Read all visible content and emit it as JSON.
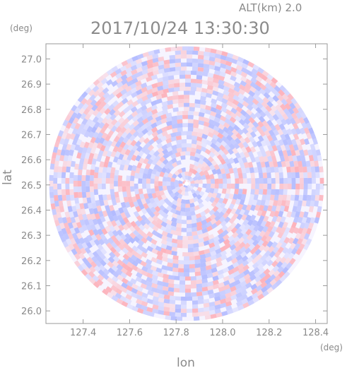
{
  "header": {
    "altitude_label": "ALT(km) 2.0",
    "timestamp": "2017/10/24 13:30:30"
  },
  "chart_data": {
    "type": "heatmap",
    "title": "2017/10/24 13:30:30",
    "subtitle": "ALT(km) 2.0",
    "xlabel": "lon",
    "ylabel": "lat",
    "x_unit": "(deg)",
    "y_unit": "(deg)",
    "xlim": [
      127.24,
      128.45
    ],
    "ylim": [
      25.95,
      27.06
    ],
    "x_ticks": [
      "127.4",
      "127.6",
      "127.8",
      "128.0",
      "128.2",
      "128.4"
    ],
    "y_ticks": [
      "26.0",
      "26.1",
      "26.2",
      "26.3",
      "26.4",
      "26.5",
      "26.6",
      "26.7",
      "26.8",
      "26.9",
      "27.0"
    ],
    "center": {
      "lon": 127.845,
      "lat": 26.505
    },
    "radius_deg_lat": 0.545,
    "colors": {
      "positive": "#ff9aa2",
      "negative": "#9aa6ff",
      "neutral": "#ffffff",
      "axis": "#9a9a9a"
    },
    "legend": "none",
    "grid": false
  }
}
